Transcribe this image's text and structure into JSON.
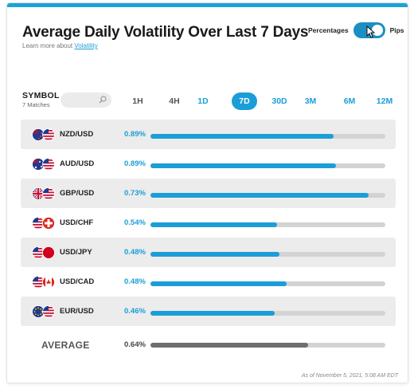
{
  "header": {
    "title": "Average Daily Volatility Over Last 7 Days",
    "learn_prefix": "Learn more about",
    "learn_link": "Volatility"
  },
  "toggle": {
    "left_label": "Percentages",
    "right_label": "Pips",
    "state": "on"
  },
  "symbol": {
    "heading": "SYMBOL",
    "matches": "7 Matches",
    "search_placeholder": ""
  },
  "tabs": [
    {
      "label": "1H",
      "style": "dim"
    },
    {
      "label": "4H",
      "style": "dim"
    },
    {
      "label": "1D",
      "style": "link"
    },
    {
      "label": "7D",
      "style": "active"
    },
    {
      "label": "30D",
      "style": "link"
    },
    {
      "label": "3M",
      "style": "link"
    },
    {
      "label": "6M",
      "style": "link"
    },
    {
      "label": "12M",
      "style": "link"
    }
  ],
  "rows": [
    {
      "pair": "NZD/USD",
      "pct": "0.89%",
      "fill_fraction": 0.78,
      "flags": [
        "nz",
        "us"
      ],
      "shaded": true
    },
    {
      "pair": "AUD/USD",
      "pct": "0.89%",
      "fill_fraction": 0.79,
      "flags": [
        "au",
        "us"
      ],
      "shaded": false
    },
    {
      "pair": "GBP/USD",
      "pct": "0.73%",
      "fill_fraction": 0.93,
      "flags": [
        "gb",
        "us"
      ],
      "shaded": true
    },
    {
      "pair": "USD/CHF",
      "pct": "0.54%",
      "fill_fraction": 0.54,
      "flags": [
        "us",
        "ch"
      ],
      "shaded": false
    },
    {
      "pair": "USD/JPY",
      "pct": "0.48%",
      "fill_fraction": 0.55,
      "flags": [
        "us",
        "jp"
      ],
      "shaded": true
    },
    {
      "pair": "USD/CAD",
      "pct": "0.48%",
      "fill_fraction": 0.58,
      "flags": [
        "us",
        "ca"
      ],
      "shaded": false
    },
    {
      "pair": "EUR/USD",
      "pct": "0.46%",
      "fill_fraction": 0.53,
      "flags": [
        "eu",
        "us"
      ],
      "shaded": true
    }
  ],
  "average": {
    "label": "AVERAGE",
    "pct": "0.64%",
    "fill_fraction": 0.67
  },
  "as_of": "As of November 5, 2021, 5:08 AM EDT",
  "colors": {
    "accent": "#1b9ed8",
    "toggle": "#1b8fc4",
    "average_bar": "#6e6e6e",
    "track": "#d3d3d3"
  }
}
